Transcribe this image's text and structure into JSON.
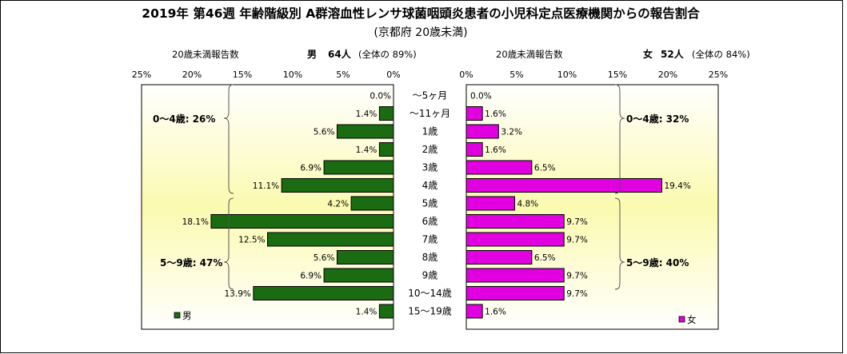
{
  "title": "2019年 第46週 年齢階級別 A群溶血性レンサ球菌咽頭炎患者の小児科定点医療機関からの報告割合",
  "subtitle": "(京都府 20歳未満)",
  "chart_data": {
    "type": "bar",
    "orientation": "horizontal-population-pyramid",
    "title": "2019年 第46週 年齢階級別 A群溶血性レンサ球菌咽頭炎患者の小児科定点医療機関からの報告割合",
    "subtitle": "(京都府 20歳未満)",
    "categories": [
      "～5ヶ月",
      "～11ヶ月",
      "1歳",
      "2歳",
      "3歳",
      "4歳",
      "5歳",
      "6歳",
      "7歳",
      "8歳",
      "9歳",
      "10～14歳",
      "15～19歳"
    ],
    "axis_ticks": [
      "25%",
      "20%",
      "15%",
      "10%",
      "5%",
      "0%"
    ],
    "axis_ticks_right": [
      "0%",
      "5%",
      "10%",
      "15%",
      "20%",
      "25%"
    ],
    "xlim": [
      0,
      25
    ],
    "series": [
      {
        "name": "男",
        "side": "left",
        "color": "#1a6b12",
        "values": [
          0.0,
          1.4,
          5.6,
          1.4,
          6.9,
          11.1,
          4.2,
          18.1,
          12.5,
          5.6,
          6.9,
          13.9,
          1.4
        ],
        "labels": [
          "0.0%",
          "1.4%",
          "5.6%",
          "1.4%",
          "6.9%",
          "11.1%",
          "4.2%",
          "18.1%",
          "12.5%",
          "5.6%",
          "6.9%",
          "13.9%",
          "1.4%"
        ],
        "header_caption": "20歳未満報告数",
        "header_sex": "男",
        "header_count": "64人",
        "header_share": "(全体の 89%)",
        "legend_label": "男",
        "group_04": "0～4歳: 26%",
        "group_59": "5～9歳: 47%"
      },
      {
        "name": "女",
        "side": "right",
        "color": "#e000e0",
        "values": [
          0.0,
          1.6,
          3.2,
          1.6,
          6.5,
          19.4,
          4.8,
          9.7,
          9.7,
          6.5,
          9.7,
          9.7,
          1.6
        ],
        "labels": [
          "0.0%",
          "1.6%",
          "3.2%",
          "1.6%",
          "6.5%",
          "19.4%",
          "4.8%",
          "9.7%",
          "9.7%",
          "6.5%",
          "9.7%",
          "9.7%",
          "1.6%"
        ],
        "header_caption": "20歳未満報告数",
        "header_sex": "女",
        "header_count": "52人",
        "header_share": "(全体の 84%)",
        "legend_label": "女",
        "group_04": "0～4歳: 32%",
        "group_59": "5～9歳: 40%"
      }
    ],
    "grid": false,
    "legend": "bottom-corners"
  }
}
